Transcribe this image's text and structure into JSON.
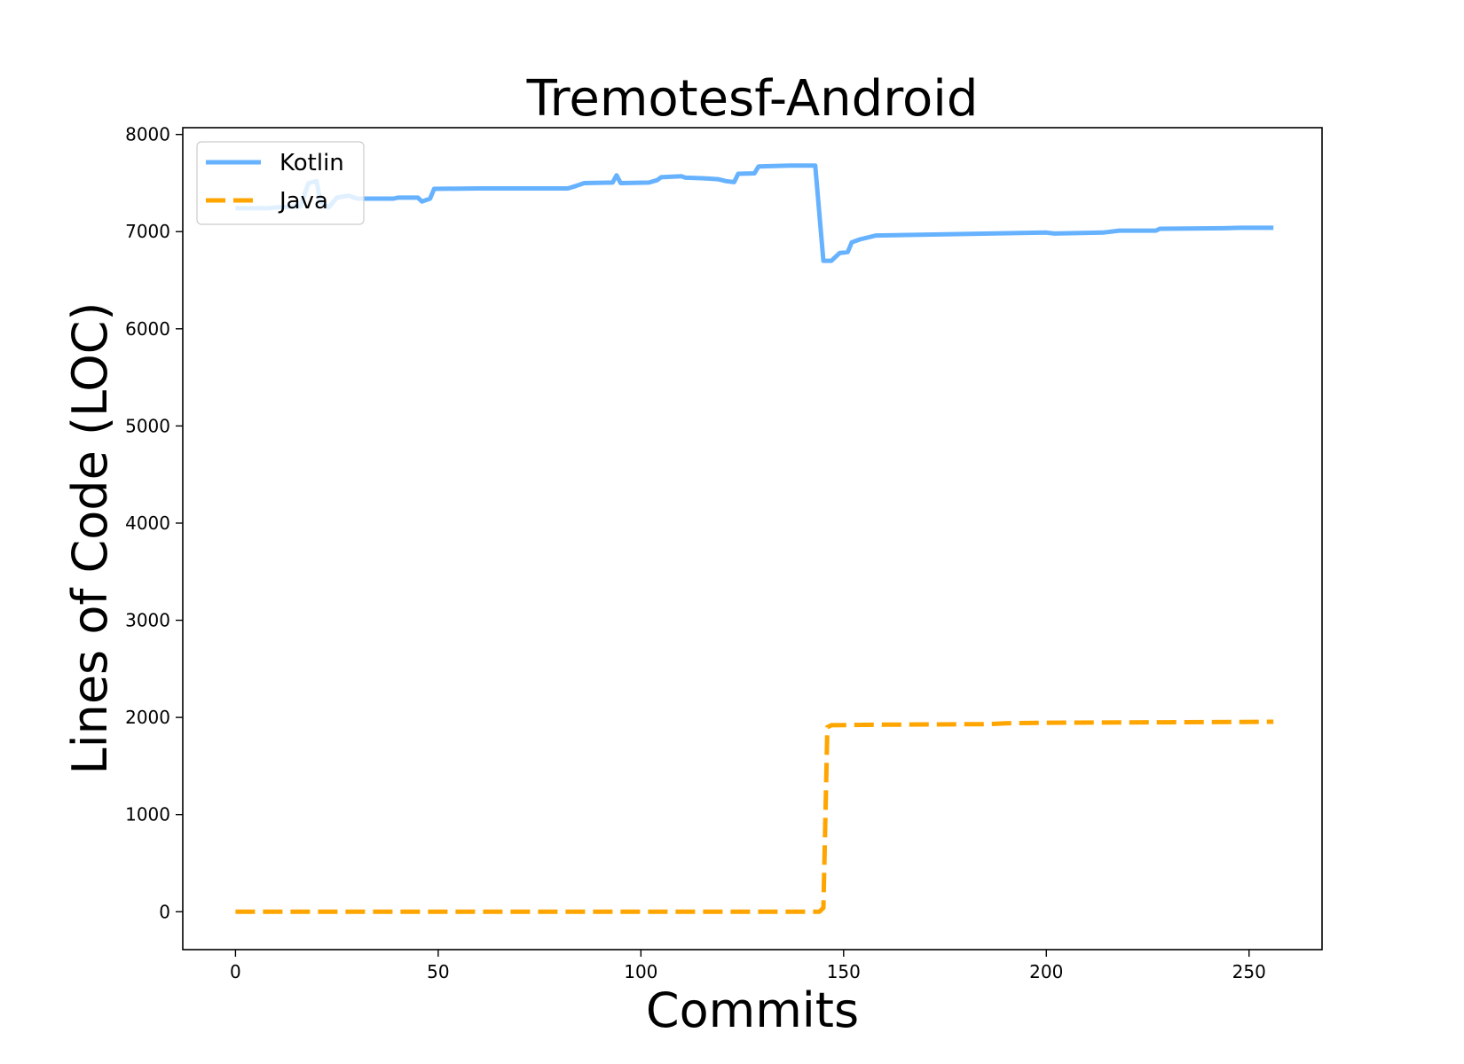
{
  "chart_data": {
    "type": "line",
    "title": "Tremotesf-Android",
    "xlabel": "Commits",
    "ylabel": "Lines of Code (LOC)",
    "xlim": [
      -13,
      268
    ],
    "ylim": [
      -390,
      8070
    ],
    "xticks": [
      0,
      50,
      100,
      150,
      200,
      250
    ],
    "yticks": [
      0,
      1000,
      2000,
      3000,
      4000,
      5000,
      6000,
      7000,
      8000
    ],
    "grid": false,
    "legend_position": "top-left",
    "series": [
      {
        "name": "Kotlin",
        "color": "#66b2ff",
        "style": "solid",
        "points": [
          [
            0,
            7240
          ],
          [
            8,
            7240
          ],
          [
            10,
            7250
          ],
          [
            16,
            7260
          ],
          [
            18,
            7500
          ],
          [
            20,
            7520
          ],
          [
            21,
            7300
          ],
          [
            23,
            7250
          ],
          [
            25,
            7350
          ],
          [
            28,
            7370
          ],
          [
            30,
            7340
          ],
          [
            39,
            7340
          ],
          [
            40,
            7350
          ],
          [
            45,
            7350
          ],
          [
            46,
            7310
          ],
          [
            48,
            7340
          ],
          [
            49,
            7440
          ],
          [
            60,
            7445
          ],
          [
            82,
            7445
          ],
          [
            84,
            7470
          ],
          [
            86,
            7500
          ],
          [
            93,
            7505
          ],
          [
            94,
            7580
          ],
          [
            95,
            7500
          ],
          [
            102,
            7505
          ],
          [
            104,
            7530
          ],
          [
            105,
            7560
          ],
          [
            110,
            7570
          ],
          [
            111,
            7555
          ],
          [
            115,
            7550
          ],
          [
            117,
            7545
          ],
          [
            119,
            7540
          ],
          [
            121,
            7520
          ],
          [
            123,
            7510
          ],
          [
            124,
            7595
          ],
          [
            128,
            7600
          ],
          [
            129,
            7670
          ],
          [
            137,
            7680
          ],
          [
            143,
            7680
          ],
          [
            145,
            6700
          ],
          [
            147,
            6700
          ],
          [
            149,
            6780
          ],
          [
            151,
            6790
          ],
          [
            152,
            6890
          ],
          [
            154,
            6920
          ],
          [
            158,
            6960
          ],
          [
            200,
            6990
          ],
          [
            202,
            6980
          ],
          [
            214,
            6990
          ],
          [
            218,
            7010
          ],
          [
            227,
            7010
          ],
          [
            228,
            7030
          ],
          [
            244,
            7035
          ],
          [
            248,
            7040
          ],
          [
            256,
            7040
          ]
        ]
      },
      {
        "name": "Java",
        "color": "#ffa500",
        "style": "dashed",
        "points": [
          [
            0,
            0
          ],
          [
            144,
            0
          ],
          [
            145,
            40
          ],
          [
            146,
            1900
          ],
          [
            147,
            1920
          ],
          [
            160,
            1925
          ],
          [
            180,
            1930
          ],
          [
            185,
            1930
          ],
          [
            190,
            1940
          ],
          [
            200,
            1945
          ],
          [
            230,
            1950
          ],
          [
            256,
            1955
          ]
        ]
      }
    ]
  }
}
